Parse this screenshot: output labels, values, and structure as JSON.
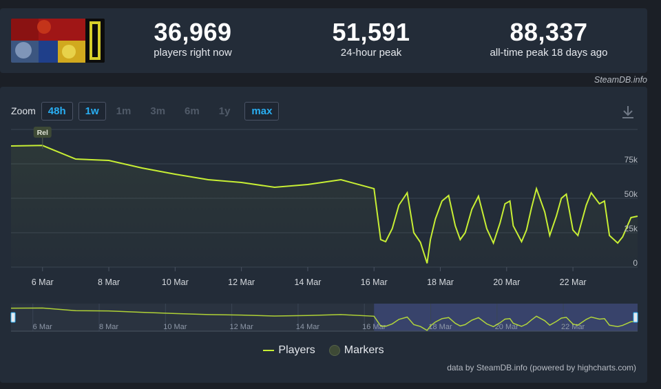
{
  "stats": [
    {
      "value": "36,969",
      "label": "players right now"
    },
    {
      "value": "51,591",
      "label": "24-hour peak"
    },
    {
      "value": "88,337",
      "label": "all-time peak 18 days ago"
    }
  ],
  "credit_top": "SteamDB.info",
  "zoom": {
    "label": "Zoom",
    "buttons": [
      {
        "label": "48h",
        "active": true
      },
      {
        "label": "1w",
        "active": true
      },
      {
        "label": "1m",
        "active": false
      },
      {
        "label": "3m",
        "active": false
      },
      {
        "label": "6m",
        "active": false
      },
      {
        "label": "1y",
        "active": false
      },
      {
        "label": "max",
        "active": true
      }
    ]
  },
  "marker_label": "Rel",
  "legend": {
    "players": "Players",
    "markers": "Markers"
  },
  "credit_bottom": "data by SteamDB.info (powered by highcharts.com)",
  "colors": {
    "series": "#c8ef34",
    "accent": "#29aef2",
    "navigator_mask": "#3d4a7a",
    "marker": "#3e4a36"
  },
  "chart_data": {
    "type": "line",
    "grid": true,
    "legend_position": "bottom-center",
    "x_ticks": [
      "6 Mar",
      "8 Mar",
      "10 Mar",
      "12 Mar",
      "14 Mar",
      "16 Mar",
      "18 Mar",
      "20 Mar",
      "22 Mar"
    ],
    "y_ticks": [
      "0",
      "25k",
      "50k",
      "75k"
    ],
    "ylim": [
      0,
      100000
    ],
    "xlim": [
      5.05,
      23.95
    ],
    "x_unit": "day of March",
    "series": [
      {
        "name": "Players",
        "x": [
          5.05,
          6.0,
          7.0,
          8.0,
          9.0,
          10.0,
          11.0,
          12.0,
          13.0,
          14.0,
          15.0,
          16.0,
          16.2,
          16.35,
          16.55,
          16.75,
          17.0,
          17.2,
          17.4,
          17.6,
          17.7,
          17.85,
          18.05,
          18.25,
          18.45,
          18.6,
          18.75,
          18.95,
          19.15,
          19.4,
          19.6,
          19.8,
          19.95,
          20.1,
          20.2,
          20.45,
          20.6,
          20.75,
          20.9,
          21.15,
          21.3,
          21.5,
          21.65,
          21.8,
          22.0,
          22.15,
          22.4,
          22.55,
          22.8,
          22.95,
          23.1,
          23.35,
          23.5,
          23.75,
          23.95
        ],
        "y": [
          88000,
          88337,
          78500,
          77500,
          72000,
          67500,
          63500,
          61500,
          58000,
          60000,
          63500,
          57000,
          20000,
          18500,
          28000,
          45000,
          54000,
          25000,
          18000,
          2800,
          20000,
          35000,
          48000,
          52000,
          30000,
          20000,
          25000,
          42000,
          51500,
          28000,
          17500,
          32000,
          46000,
          48000,
          30000,
          18500,
          27000,
          43000,
          57000,
          40000,
          23000,
          37000,
          50000,
          53000,
          27000,
          23000,
          45000,
          54000,
          46000,
          48000,
          23000,
          17500,
          22000,
          36000,
          37000
        ]
      }
    ],
    "markers": [
      {
        "x": 6.0,
        "label": "Rel"
      }
    ]
  }
}
